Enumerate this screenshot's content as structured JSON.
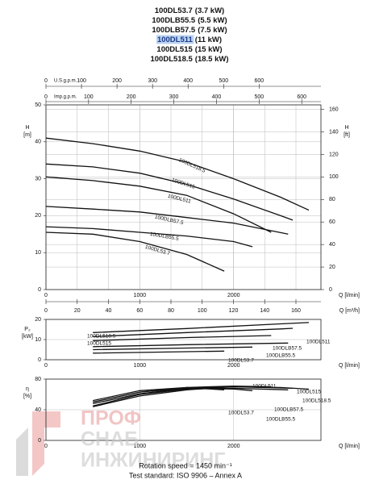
{
  "header_lines": [
    {
      "model": "100DL53.7",
      "power": "(3.7 kW)"
    },
    {
      "model": "100DLB55.5",
      "power": "(5.5 kW)"
    },
    {
      "model": "100DLB57.5",
      "power": "(7.5 kW)"
    },
    {
      "model": "100DL511",
      "power": "(11 kW)",
      "highlighted": true
    },
    {
      "model": "100DL515",
      "power": "(15 kW)"
    },
    {
      "model": "100DL518.5",
      "power": "(18.5 kW)"
    }
  ],
  "footer_lines": [
    "Rotation speed = 1450 min⁻¹",
    "Test standard: ISO 9906 – Annex A"
  ],
  "watermark": [
    "ПРОФ",
    "СНАБ",
    "ИНЖИНИРИНГ"
  ],
  "chart_data": [
    {
      "type": "line",
      "ylabel_lines": [
        "H",
        "[m]"
      ],
      "y2label_lines": [
        "H",
        "[ft]"
      ],
      "xlabel": "Q [l/min]",
      "xlim": [
        0,
        2930
      ],
      "xticks": [
        0,
        1000,
        2000
      ],
      "ylim": [
        0,
        50
      ],
      "yticks": [
        0,
        10,
        20,
        30,
        40,
        50
      ],
      "y2lim": [
        0,
        164
      ],
      "y2ticks": [
        0,
        20,
        40,
        60,
        80,
        100,
        120,
        140,
        160
      ],
      "grid": true,
      "x_scales": [
        {
          "label": "U.S.g.p.m.",
          "position": "top",
          "lim": [
            0,
            774
          ],
          "ticks": [
            0,
            100,
            200,
            300,
            400,
            500,
            600
          ]
        },
        {
          "label": "Imp.g.p.m.",
          "position": "top",
          "lim": [
            0,
            645
          ],
          "ticks": [
            0,
            100,
            200,
            300,
            400,
            500,
            600
          ]
        },
        {
          "label": "Q [m³/h]",
          "position": "bottom",
          "lim": [
            0,
            176
          ],
          "ticks": [
            0,
            20,
            40,
            60,
            80,
            100,
            120,
            140,
            160
          ]
        }
      ],
      "series": [
        {
          "name": "100DL518.5",
          "color": "#111",
          "x": [
            0,
            500,
            1000,
            1500,
            2000,
            2500,
            2800
          ],
          "values": [
            41,
            39.5,
            37.5,
            34.5,
            30,
            25,
            21.5
          ]
        },
        {
          "name": "100DL515",
          "color": "#111",
          "x": [
            0,
            500,
            1000,
            1500,
            2000,
            2500,
            2630
          ],
          "values": [
            34,
            33.2,
            31.5,
            28.5,
            24.5,
            20,
            18.8
          ]
        },
        {
          "name": "100DL511",
          "color": "#111",
          "x": [
            0,
            500,
            1000,
            1500,
            2000,
            2400
          ],
          "values": [
            30.5,
            29.5,
            28,
            25.5,
            20.5,
            15.5
          ]
        },
        {
          "name": "100DLB57.5",
          "color": "#111",
          "x": [
            0,
            500,
            1000,
            1500,
            2000,
            2580
          ],
          "values": [
            22.5,
            21.8,
            21,
            19.5,
            18,
            15
          ]
        },
        {
          "name": "100DLB55.5",
          "color": "#111",
          "x": [
            0,
            500,
            1000,
            1500,
            2000,
            2200
          ],
          "values": [
            17,
            16.5,
            15.5,
            14.5,
            13,
            11.6
          ]
        },
        {
          "name": "100DL53.7",
          "color": "#111",
          "x": [
            0,
            500,
            1000,
            1500,
            1900
          ],
          "values": [
            15.5,
            15,
            13,
            9.5,
            5
          ]
        }
      ]
    },
    {
      "type": "line",
      "ylabel_lines": [
        "P₂",
        "[kW]"
      ],
      "xlabel": "Q [l/min]",
      "xlim": [
        0,
        2930
      ],
      "xticks": [
        0,
        1000,
        2000
      ],
      "ylim": [
        0,
        20
      ],
      "yticks": [
        0,
        10,
        20
      ],
      "grid": true,
      "series": [
        {
          "name": "100DL518.5",
          "color": "#111",
          "x": [
            500,
            1500,
            2500,
            2800
          ],
          "values": [
            13.5,
            15.5,
            17.8,
            18.5
          ]
        },
        {
          "name": "100DL515",
          "color": "#111",
          "x": [
            500,
            1500,
            2500,
            2630
          ],
          "values": [
            11.5,
            13.5,
            15.3,
            15.6
          ]
        },
        {
          "name": "100DL511",
          "color": "#111",
          "x": [
            500,
            1500,
            2400
          ],
          "values": [
            9.5,
            11,
            12
          ]
        },
        {
          "name": "100DLB57.5",
          "color": "#111",
          "x": [
            500,
            1500,
            2580
          ],
          "values": [
            6.5,
            7.5,
            8.3
          ]
        },
        {
          "name": "100DLB55.5",
          "color": "#111",
          "x": [
            500,
            1500,
            2200
          ],
          "values": [
            5,
            5.8,
            6.3
          ]
        },
        {
          "name": "100DL53.7",
          "color": "#111",
          "x": [
            500,
            1500,
            1900
          ],
          "values": [
            3.3,
            4,
            4.3
          ]
        }
      ]
    },
    {
      "type": "line",
      "ylabel_lines": [
        "η",
        "[%]"
      ],
      "xlabel": "Q [l/min]",
      "xlim": [
        0,
        2930
      ],
      "xticks": [
        0,
        1000,
        2000
      ],
      "ylim": [
        0,
        80
      ],
      "yticks": [
        0,
        40,
        80
      ],
      "grid": true,
      "series": [
        {
          "name": "100DL511",
          "color": "#111",
          "x": [
            500,
            1000,
            1500,
            2000,
            2400
          ],
          "values": [
            50,
            63,
            69,
            71,
            70
          ]
        },
        {
          "name": "100DL515",
          "color": "#111",
          "x": [
            500,
            1000,
            1500,
            2000,
            2630
          ],
          "values": [
            48,
            61,
            68,
            70,
            68
          ]
        },
        {
          "name": "100DL518.5",
          "color": "#111",
          "x": [
            500,
            1000,
            1500,
            2000,
            2500,
            2800
          ],
          "values": [
            44,
            58,
            66,
            70,
            69,
            67
          ]
        },
        {
          "name": "100DLB57.5",
          "color": "#111",
          "x": [
            500,
            1000,
            1500,
            2000,
            2580
          ],
          "values": [
            45,
            60,
            67,
            68,
            66
          ]
        },
        {
          "name": "100DL53.7",
          "color": "#111",
          "x": [
            500,
            1000,
            1500,
            1900
          ],
          "values": [
            52,
            65,
            69,
            66
          ]
        },
        {
          "name": "100DLB55.5",
          "color": "#111",
          "x": [
            500,
            1000,
            1500,
            2000,
            2200
          ],
          "values": [
            50,
            63,
            68,
            67,
            65
          ]
        }
      ]
    }
  ]
}
